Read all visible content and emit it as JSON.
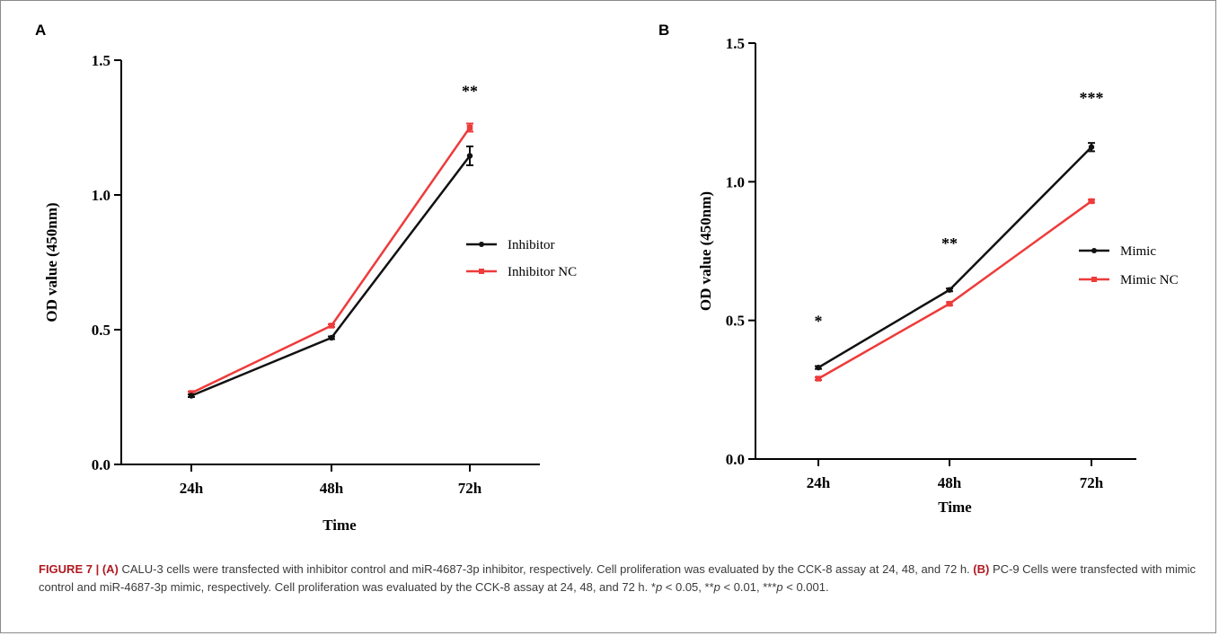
{
  "colors": {
    "series1": "#111111",
    "series2": "#ee3b3b"
  },
  "chart_data": [
    {
      "panel": "A",
      "type": "line",
      "categories": [
        "24h",
        "48h",
        "72h"
      ],
      "xlabel": "Time",
      "ylabel": "OD value (450nm)",
      "ylim": [
        0,
        1.5
      ],
      "yticks": [
        "0.0",
        "0.5",
        "1.0",
        "1.5"
      ],
      "grid": false,
      "legend_position": "right",
      "series": [
        {
          "name": "Inhibitor",
          "values": [
            0.255,
            0.47,
            1.145
          ],
          "err": [
            0.005,
            0.005,
            0.035
          ]
        },
        {
          "name": "Inhibitor NC",
          "values": [
            0.265,
            0.515,
            1.25
          ],
          "err": [
            0.005,
            0.005,
            0.015
          ]
        }
      ],
      "annotations": [
        {
          "text": "**",
          "category": "72h"
        }
      ]
    },
    {
      "panel": "B",
      "type": "line",
      "categories": [
        "24h",
        "48h",
        "72h"
      ],
      "xlabel": "Time",
      "ylabel": "OD value (450nm)",
      "ylim": [
        0,
        1.5
      ],
      "yticks": [
        "0.0",
        "0.5",
        "1.0",
        "1.5"
      ],
      "grid": false,
      "legend_position": "right",
      "series": [
        {
          "name": "Mimic",
          "values": [
            0.33,
            0.61,
            1.125
          ],
          "err": [
            0.005,
            0.005,
            0.015
          ]
        },
        {
          "name": "Mimic NC",
          "values": [
            0.29,
            0.56,
            0.93
          ],
          "err": [
            0.005,
            0.005,
            0.005
          ]
        }
      ],
      "annotations": [
        {
          "text": "*",
          "category": "24h"
        },
        {
          "text": "**",
          "category": "48h"
        },
        {
          "text": "***",
          "category": "72h"
        }
      ]
    }
  ],
  "caption": {
    "label": "FIGURE 7 |",
    "a_label": "(A)",
    "a_text": " CALU-3 cells were transfected with inhibitor control and miR-4687-3p inhibitor, respectively. Cell proliferation was evaluated by the CCK-8 assay at 24, 48, and 72 h. ",
    "b_label": "(B)",
    "b_text": " PC-9 Cells were transfected with mimic control and miR-4687-3p mimic, respectively. Cell proliferation was evaluated by the CCK-8 assay at 24, 48, and 72 h. ",
    "p1_stars": "*",
    "p1_p": "p",
    "p1_rest": " < 0.05, ",
    "p2_stars": "**",
    "p2_p": "p",
    "p2_rest": " < 0.01, ",
    "p3_stars": "***",
    "p3_p": "p",
    "p3_rest": " < 0.001."
  }
}
